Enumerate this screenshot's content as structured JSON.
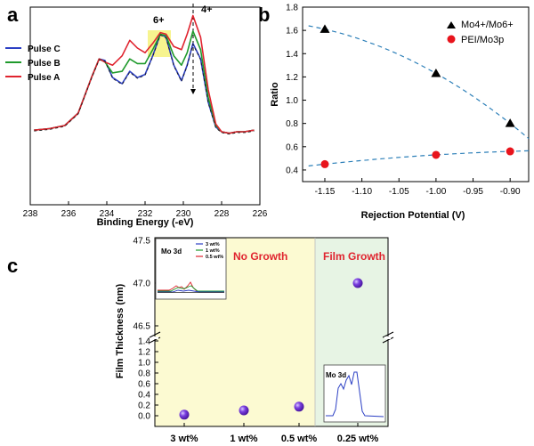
{
  "chart_data": [
    {
      "panel": "a",
      "type": "line",
      "xlabel": "Binding Energy (-eV)",
      "ylabel": "",
      "xlim": [
        238,
        226
      ],
      "xticks": [
        "238",
        "236",
        "234",
        "232",
        "230",
        "228",
        "226"
      ],
      "annotations": [
        "6+",
        "4+"
      ],
      "series": [
        {
          "name": "Pulse C",
          "color": "#2b3fc4",
          "x": [
            237.8,
            237,
            236.2,
            235.5,
            234.8,
            234.4,
            234.1,
            233.7,
            233.2,
            232.8,
            232.4,
            232,
            231.6,
            231.2,
            230.9,
            230.5,
            230.1,
            229.8,
            229.5,
            229.1,
            228.7,
            228.3,
            228,
            227.6,
            227.2,
            226.8,
            226.3
          ],
          "y": [
            0.24,
            0.25,
            0.27,
            0.35,
            0.58,
            0.7,
            0.69,
            0.58,
            0.54,
            0.62,
            0.58,
            0.6,
            0.72,
            0.86,
            0.84,
            0.66,
            0.56,
            0.66,
            0.8,
            0.7,
            0.42,
            0.26,
            0.23,
            0.22,
            0.23,
            0.23,
            0.24
          ]
        },
        {
          "name": "Pulse B",
          "color": "#1f9a2c",
          "x": [
            237.8,
            237,
            236.2,
            235.5,
            234.8,
            234.4,
            234.1,
            233.7,
            233.2,
            232.8,
            232.4,
            232,
            231.6,
            231.2,
            230.9,
            230.5,
            230.1,
            229.8,
            229.5,
            229.1,
            228.7,
            228.3,
            228,
            227.6,
            227.2,
            226.8,
            226.3
          ],
          "y": [
            0.24,
            0.25,
            0.27,
            0.35,
            0.58,
            0.7,
            0.68,
            0.61,
            0.62,
            0.7,
            0.67,
            0.67,
            0.76,
            0.86,
            0.85,
            0.72,
            0.66,
            0.74,
            0.88,
            0.76,
            0.45,
            0.27,
            0.23,
            0.22,
            0.23,
            0.23,
            0.24
          ]
        },
        {
          "name": "Pulse A",
          "color": "#e0242f",
          "x": [
            237.8,
            237,
            236.2,
            235.5,
            234.8,
            234.4,
            234.1,
            233.7,
            233.2,
            232.8,
            232.4,
            232,
            231.6,
            231.2,
            230.9,
            230.5,
            230.1,
            229.8,
            229.5,
            229.1,
            228.7,
            228.3,
            228,
            227.6,
            227.2,
            226.8,
            226.3
          ],
          "y": [
            0.24,
            0.25,
            0.27,
            0.35,
            0.58,
            0.7,
            0.68,
            0.66,
            0.72,
            0.82,
            0.77,
            0.74,
            0.8,
            0.87,
            0.86,
            0.78,
            0.76,
            0.86,
            0.98,
            0.84,
            0.5,
            0.28,
            0.23,
            0.22,
            0.23,
            0.23,
            0.24
          ]
        }
      ]
    },
    {
      "panel": "b",
      "type": "scatter",
      "xlabel": "Rejection Potential (V)",
      "ylabel": "Ratio",
      "xlim": [
        -1.18,
        -0.875
      ],
      "ylim": [
        0.3,
        1.8
      ],
      "xticks": [
        "-1.15",
        "-1.10",
        "-1.05",
        "-1.00",
        "-0.95",
        "-0.90"
      ],
      "yticks": [
        "0.4",
        "0.6",
        "0.8",
        "1.0",
        "1.2",
        "1.4",
        "1.6",
        "1.8"
      ],
      "series": [
        {
          "name": "Mo4+/Mo6+",
          "marker": "triangle",
          "color": "#000000",
          "x": [
            -1.15,
            -1.0,
            -0.9
          ],
          "y": [
            1.61,
            1.23,
            0.8
          ]
        },
        {
          "name": "PEI/Mo3p",
          "marker": "circle",
          "color": "#e8141c",
          "x": [
            -1.15,
            -1.0,
            -0.9
          ],
          "y": [
            0.45,
            0.53,
            0.56
          ]
        }
      ]
    },
    {
      "panel": "c",
      "type": "scatter",
      "xlabel": "",
      "ylabel": "Film Thickness (nm)",
      "categories": [
        "3 wt%",
        "1 wt%",
        "0.5 wt%",
        "0.25 wt%"
      ],
      "values": [
        0.02,
        0.1,
        0.17,
        47.0
      ],
      "yticks_lower": [
        "0.0",
        "0.2",
        "0.4",
        "0.6",
        "0.8",
        "1.0",
        "1.2",
        "1.4"
      ],
      "yticks_upper": [
        "46.5",
        "47.0",
        "47.5"
      ],
      "regions": [
        "No Growth",
        "Film Growth"
      ],
      "inset_label": "Mo 3d",
      "inset_legend": [
        "3 wt%",
        "1 wt%",
        "0.5 wt%"
      ],
      "inset2_label": "Mo 3d"
    }
  ],
  "panels": {
    "a": "a",
    "b": "b",
    "c": "c"
  },
  "colors": {
    "blue": "#2b3fc4",
    "green": "#1f9a2c",
    "red": "#e0242f",
    "yellow_bg": "#fcfad2",
    "green_bg": "#e7f4e4",
    "purple": "#6b2fc8"
  }
}
